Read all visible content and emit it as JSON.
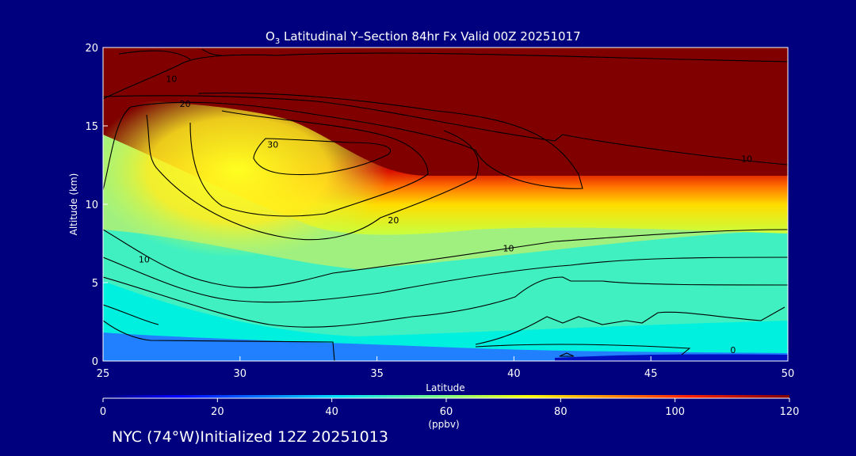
{
  "chart_data": {
    "type": "heatmap",
    "title_prefix": "O",
    "title_subscript": "3",
    "title_rest": " Latitudinal Y–Section 84hr  Fx Valid 00Z 20251017",
    "xlabel": "Latitude",
    "ylabel": "Altitude (km)",
    "xlim": [
      25,
      50
    ],
    "ylim": [
      0,
      20
    ],
    "x_ticks": [
      "25",
      "30",
      "35",
      "40",
      "45",
      "50"
    ],
    "y_ticks": [
      "0",
      "5",
      "10",
      "15",
      "20"
    ],
    "colorbar": {
      "range": [
        0,
        120
      ],
      "ticks": [
        "0",
        "20",
        "40",
        "60",
        "80",
        "100",
        "120"
      ],
      "units": "(ppbv)"
    },
    "contour_labels": [
      {
        "text": "10",
        "x": 27.5,
        "y": 17.8
      },
      {
        "text": "20",
        "x": 28.0,
        "y": 16.2
      },
      {
        "text": "30",
        "x": 31.2,
        "y": 13.6
      },
      {
        "text": "20",
        "x": 35.6,
        "y": 8.8
      },
      {
        "text": "10",
        "x": 39.8,
        "y": 7.0
      },
      {
        "text": "10",
        "x": 26.5,
        "y": 6.3
      },
      {
        "text": "10",
        "x": 48.5,
        "y": 12.7
      },
      {
        "text": "0",
        "x": 48.0,
        "y": 0.5
      }
    ]
  },
  "footer": "NYC (74°W)Initialized 12Z 20251013"
}
